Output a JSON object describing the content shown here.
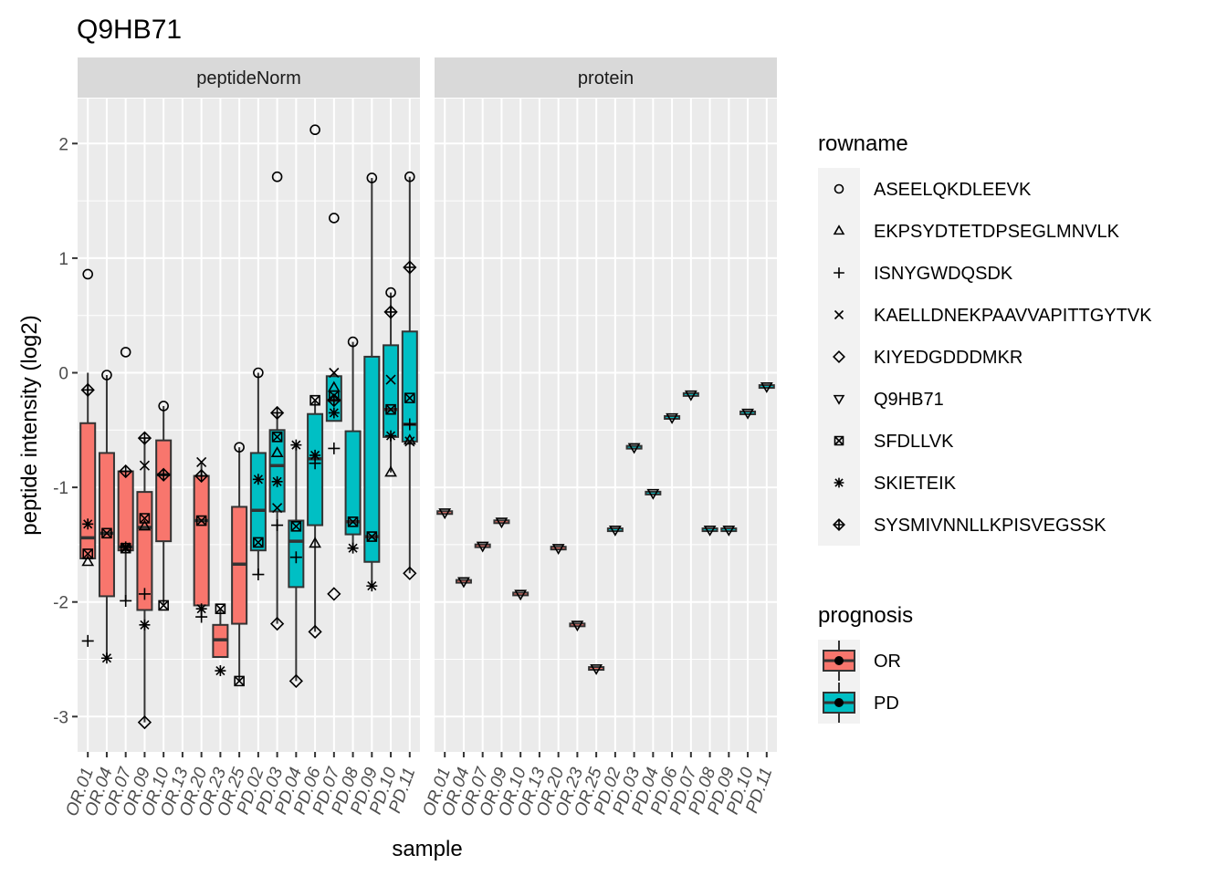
{
  "chart_data": {
    "type": "boxplot",
    "title": "Q9HB71",
    "xlabel": "sample",
    "ylabel": "peptide intensity (log2)",
    "ylim": [
      -3.3,
      2.3
    ],
    "yticks": [
      2,
      1,
      0,
      -1,
      -2,
      -3
    ],
    "ytick_labels": [
      "2",
      "1",
      "0",
      "-1",
      "-2",
      "-3"
    ],
    "samples": [
      "OR.01",
      "OR.04",
      "OR.07",
      "OR.09",
      "OR.10",
      "OR.13",
      "OR.20",
      "OR.23",
      "OR.25",
      "PD.02",
      "PD.03",
      "PD.04",
      "PD.06",
      "PD.07",
      "PD.08",
      "PD.09",
      "PD.10",
      "PD.11"
    ],
    "facets": [
      "peptideNorm",
      "protein"
    ],
    "prognosis_colors": {
      "OR": "#F8766D",
      "PD": "#00BFC4"
    },
    "panels": [
      {
        "facet": "peptideNorm",
        "boxes": [
          {
            "sample": "OR.01",
            "prognosis": "OR",
            "lower": -1.62,
            "q1": -1.62,
            "median": -1.44,
            "q3": -0.44,
            "upper": 0.0
          },
          {
            "sample": "OR.04",
            "prognosis": "OR",
            "lower": -2.49,
            "q1": -1.95,
            "median": -1.4,
            "q3": -0.7,
            "upper": -0.02
          },
          {
            "sample": "OR.07",
            "prognosis": "OR",
            "lower": -1.99,
            "q1": -1.55,
            "median": -1.52,
            "q3": -0.86,
            "upper": -0.86
          },
          {
            "sample": "OR.09",
            "prognosis": "OR",
            "lower": -3.05,
            "q1": -2.07,
            "median": -1.35,
            "q3": -1.04,
            "upper": -0.57
          },
          {
            "sample": "OR.10",
            "prognosis": "OR",
            "lower": -2.03,
            "q1": -1.47,
            "median": -0.89,
            "q3": -0.59,
            "upper": -0.29
          },
          {
            "sample": "OR.20",
            "prognosis": "OR",
            "lower": -2.13,
            "q1": -2.03,
            "median": -1.29,
            "q3": -0.9,
            "upper": -0.77
          },
          {
            "sample": "OR.23",
            "prognosis": "OR",
            "lower": -2.48,
            "q1": -2.48,
            "median": -2.33,
            "q3": -2.2,
            "upper": -2.06
          },
          {
            "sample": "OR.25",
            "prognosis": "OR",
            "lower": -2.69,
            "q1": -2.19,
            "median": -1.67,
            "q3": -1.17,
            "upper": -0.65
          },
          {
            "sample": "PD.02",
            "prognosis": "PD",
            "lower": -1.76,
            "q1": -1.55,
            "median": -1.2,
            "q3": -0.7,
            "upper": 0.0
          },
          {
            "sample": "PD.03",
            "prognosis": "PD",
            "lower": -2.19,
            "q1": -1.21,
            "median": -0.81,
            "q3": -0.5,
            "upper": -0.35
          },
          {
            "sample": "PD.04",
            "prognosis": "PD",
            "lower": -2.69,
            "q1": -1.87,
            "median": -1.47,
            "q3": -1.29,
            "upper": -0.63
          },
          {
            "sample": "PD.06",
            "prognosis": "PD",
            "lower": -2.26,
            "q1": -1.33,
            "median": -0.75,
            "q3": -0.36,
            "upper": -0.24
          },
          {
            "sample": "PD.07",
            "prognosis": "PD",
            "lower": -0.42,
            "q1": -0.42,
            "median": -0.24,
            "q3": -0.03,
            "upper": 0.0
          },
          {
            "sample": "PD.08",
            "prognosis": "PD",
            "lower": -1.53,
            "q1": -1.41,
            "median": -1.3,
            "q3": -0.51,
            "upper": 0.27
          },
          {
            "sample": "PD.09",
            "prognosis": "PD",
            "lower": -1.86,
            "q1": -1.65,
            "median": -1.43,
            "q3": 0.14,
            "upper": 1.7
          },
          {
            "sample": "PD.10",
            "prognosis": "PD",
            "lower": -0.87,
            "q1": -0.56,
            "median": -0.32,
            "q3": 0.24,
            "upper": 0.7
          },
          {
            "sample": "PD.11",
            "prognosis": "PD",
            "lower": -1.75,
            "q1": -0.6,
            "median": -0.45,
            "q3": 0.36,
            "upper": 1.71
          }
        ],
        "points": [
          {
            "sample": "OR.01",
            "shape": "circle",
            "y": 0.86
          },
          {
            "sample": "OR.01",
            "shape": "diamond-plus",
            "y": -0.15
          },
          {
            "sample": "OR.01",
            "shape": "asterisk",
            "y": -1.32
          },
          {
            "sample": "OR.01",
            "shape": "square-cross",
            "y": -1.58
          },
          {
            "sample": "OR.01",
            "shape": "triangle",
            "y": -1.65
          },
          {
            "sample": "OR.01",
            "shape": "plus",
            "y": -2.34
          },
          {
            "sample": "OR.04",
            "shape": "circle",
            "y": -0.02
          },
          {
            "sample": "OR.04",
            "shape": "square-cross",
            "y": -1.4
          },
          {
            "sample": "OR.04",
            "shape": "asterisk",
            "y": -2.49
          },
          {
            "sample": "OR.07",
            "shape": "circle",
            "y": 0.18
          },
          {
            "sample": "OR.07",
            "shape": "diamond-plus",
            "y": -0.86
          },
          {
            "sample": "OR.07",
            "shape": "asterisk",
            "y": -1.52
          },
          {
            "sample": "OR.07",
            "shape": "square-cross",
            "y": -1.53
          },
          {
            "sample": "OR.07",
            "shape": "plus",
            "y": -1.99
          },
          {
            "sample": "OR.09",
            "shape": "diamond-plus",
            "y": -0.57
          },
          {
            "sample": "OR.09",
            "shape": "cross",
            "y": -0.81
          },
          {
            "sample": "OR.09",
            "shape": "square-cross",
            "y": -1.27
          },
          {
            "sample": "OR.09",
            "shape": "triangle",
            "y": -1.34
          },
          {
            "sample": "OR.09",
            "shape": "plus",
            "y": -1.93
          },
          {
            "sample": "OR.09",
            "shape": "asterisk",
            "y": -2.2
          },
          {
            "sample": "OR.09",
            "shape": "diamond",
            "y": -3.05
          },
          {
            "sample": "OR.10",
            "shape": "circle",
            "y": -0.29
          },
          {
            "sample": "OR.10",
            "shape": "diamond-plus",
            "y": -0.89
          },
          {
            "sample": "OR.10",
            "shape": "square-cross",
            "y": -2.03
          },
          {
            "sample": "OR.20",
            "shape": "cross",
            "y": -0.78
          },
          {
            "sample": "OR.20",
            "shape": "diamond-plus",
            "y": -0.9
          },
          {
            "sample": "OR.20",
            "shape": "square-cross",
            "y": -1.29
          },
          {
            "sample": "OR.20",
            "shape": "asterisk",
            "y": -2.06
          },
          {
            "sample": "OR.20",
            "shape": "plus",
            "y": -2.13
          },
          {
            "sample": "OR.23",
            "shape": "square-cross",
            "y": -2.06
          },
          {
            "sample": "OR.23",
            "shape": "asterisk",
            "y": -2.6
          },
          {
            "sample": "OR.25",
            "shape": "circle",
            "y": -0.65
          },
          {
            "sample": "OR.25",
            "shape": "square-cross",
            "y": -2.69
          },
          {
            "sample": "PD.02",
            "shape": "circle",
            "y": 0.0
          },
          {
            "sample": "PD.02",
            "shape": "asterisk",
            "y": -0.93
          },
          {
            "sample": "PD.02",
            "shape": "square-cross",
            "y": -1.48
          },
          {
            "sample": "PD.02",
            "shape": "plus",
            "y": -1.76
          },
          {
            "sample": "PD.03",
            "shape": "circle",
            "y": 1.71
          },
          {
            "sample": "PD.03",
            "shape": "diamond-plus",
            "y": -0.35
          },
          {
            "sample": "PD.03",
            "shape": "square-cross",
            "y": -0.56
          },
          {
            "sample": "PD.03",
            "shape": "triangle",
            "y": -0.7
          },
          {
            "sample": "PD.03",
            "shape": "asterisk",
            "y": -0.95
          },
          {
            "sample": "PD.03",
            "shape": "cross",
            "y": -1.18
          },
          {
            "sample": "PD.03",
            "shape": "plus",
            "y": -1.33
          },
          {
            "sample": "PD.03",
            "shape": "diamond",
            "y": -2.19
          },
          {
            "sample": "PD.04",
            "shape": "asterisk",
            "y": -0.63
          },
          {
            "sample": "PD.04",
            "shape": "square-cross",
            "y": -1.34
          },
          {
            "sample": "PD.04",
            "shape": "plus",
            "y": -1.61
          },
          {
            "sample": "PD.04",
            "shape": "diamond",
            "y": -2.69
          },
          {
            "sample": "PD.06",
            "shape": "circle",
            "y": 2.12
          },
          {
            "sample": "PD.06",
            "shape": "square-cross",
            "y": -0.24
          },
          {
            "sample": "PD.06",
            "shape": "asterisk",
            "y": -0.72
          },
          {
            "sample": "PD.06",
            "shape": "plus",
            "y": -0.79
          },
          {
            "sample": "PD.06",
            "shape": "triangle",
            "y": -1.49
          },
          {
            "sample": "PD.06",
            "shape": "diamond",
            "y": -2.26
          },
          {
            "sample": "PD.07",
            "shape": "circle",
            "y": 1.35
          },
          {
            "sample": "PD.07",
            "shape": "cross",
            "y": 0.0
          },
          {
            "sample": "PD.07",
            "shape": "triangle",
            "y": -0.13
          },
          {
            "sample": "PD.07",
            "shape": "square-cross",
            "y": -0.2
          },
          {
            "sample": "PD.07",
            "shape": "diamond-plus",
            "y": -0.24
          },
          {
            "sample": "PD.07",
            "shape": "asterisk",
            "y": -0.35
          },
          {
            "sample": "PD.07",
            "shape": "plus",
            "y": -0.66
          },
          {
            "sample": "PD.07",
            "shape": "diamond",
            "y": -1.93
          },
          {
            "sample": "PD.08",
            "shape": "circle",
            "y": 0.27
          },
          {
            "sample": "PD.08",
            "shape": "square-cross",
            "y": -1.3
          },
          {
            "sample": "PD.08",
            "shape": "asterisk",
            "y": -1.53
          },
          {
            "sample": "PD.09",
            "shape": "circle",
            "y": 1.7
          },
          {
            "sample": "PD.09",
            "shape": "square-cross",
            "y": -1.43
          },
          {
            "sample": "PD.09",
            "shape": "asterisk",
            "y": -1.86
          },
          {
            "sample": "PD.10",
            "shape": "circle",
            "y": 0.7
          },
          {
            "sample": "PD.10",
            "shape": "diamond-plus",
            "y": 0.53
          },
          {
            "sample": "PD.10",
            "shape": "cross",
            "y": -0.06
          },
          {
            "sample": "PD.10",
            "shape": "square-cross",
            "y": -0.32
          },
          {
            "sample": "PD.10",
            "shape": "asterisk",
            "y": -0.55
          },
          {
            "sample": "PD.10",
            "shape": "triangle",
            "y": -0.87
          },
          {
            "sample": "PD.11",
            "shape": "circle",
            "y": 1.71
          },
          {
            "sample": "PD.11",
            "shape": "diamond-plus",
            "y": 0.92
          },
          {
            "sample": "PD.11",
            "shape": "square-cross",
            "y": -0.22
          },
          {
            "sample": "PD.11",
            "shape": "plus",
            "y": -0.45
          },
          {
            "sample": "PD.11",
            "shape": "triangle",
            "y": -0.59
          },
          {
            "sample": "PD.11",
            "shape": "cross",
            "y": -0.6
          },
          {
            "sample": "PD.11",
            "shape": "diamond",
            "y": -1.75
          }
        ]
      },
      {
        "facet": "protein",
        "protein_values": [
          {
            "sample": "OR.01",
            "prognosis": "OR",
            "y": -1.22
          },
          {
            "sample": "OR.04",
            "prognosis": "OR",
            "y": -1.82
          },
          {
            "sample": "OR.07",
            "prognosis": "OR",
            "y": -1.51
          },
          {
            "sample": "OR.09",
            "prognosis": "OR",
            "y": -1.3
          },
          {
            "sample": "OR.10",
            "prognosis": "OR",
            "y": -1.93
          },
          {
            "sample": "OR.20",
            "prognosis": "OR",
            "y": -1.53
          },
          {
            "sample": "OR.23",
            "prognosis": "OR",
            "y": -2.2
          },
          {
            "sample": "OR.25",
            "prognosis": "OR",
            "y": -2.58
          },
          {
            "sample": "PD.02",
            "prognosis": "PD",
            "y": -1.37
          },
          {
            "sample": "PD.03",
            "prognosis": "PD",
            "y": -0.65
          },
          {
            "sample": "PD.04",
            "prognosis": "PD",
            "y": -1.05
          },
          {
            "sample": "PD.06",
            "prognosis": "PD",
            "y": -0.39
          },
          {
            "sample": "PD.07",
            "prognosis": "PD",
            "y": -0.19
          },
          {
            "sample": "PD.08",
            "prognosis": "PD",
            "y": -1.37
          },
          {
            "sample": "PD.09",
            "prognosis": "PD",
            "y": -1.37
          },
          {
            "sample": "PD.10",
            "prognosis": "PD",
            "y": -0.35
          },
          {
            "sample": "PD.11",
            "prognosis": "PD",
            "y": -0.12
          }
        ]
      }
    ],
    "legends": [
      {
        "title": "rowname",
        "items": [
          {
            "label": "ASEELQKDLEEVK",
            "shape": "circle"
          },
          {
            "label": "EKPSYDTETDPSEGLMNVLK",
            "shape": "triangle"
          },
          {
            "label": "ISNYGWDQSDK",
            "shape": "plus"
          },
          {
            "label": "KAELLDNEKPAAVVAPITTGYTVK",
            "shape": "cross"
          },
          {
            "label": "KIYEDGDDDMKR",
            "shape": "diamond"
          },
          {
            "label": "Q9HB71",
            "shape": "triangle-down"
          },
          {
            "label": "SFDLLVK",
            "shape": "square-cross"
          },
          {
            "label": "SKIETEIK",
            "shape": "asterisk"
          },
          {
            "label": "SYSMIVNNLLKPISVEGSSK",
            "shape": "diamond-plus"
          }
        ]
      },
      {
        "title": "prognosis",
        "items": [
          {
            "label": "OR",
            "color": "#F8766D"
          },
          {
            "label": "PD",
            "color": "#00BFC4"
          }
        ]
      }
    ]
  }
}
